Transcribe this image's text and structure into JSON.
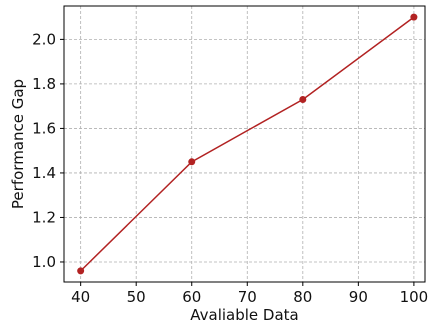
{
  "chart_data": {
    "type": "line",
    "title": "",
    "xlabel": "Avaliable Data",
    "ylabel": "Performance Gap",
    "xlim": [
      37,
      102
    ],
    "ylim": [
      0.91,
      2.15
    ],
    "x_ticks": [
      40,
      50,
      60,
      70,
      80,
      90,
      100
    ],
    "y_ticks": [
      1.0,
      1.2,
      1.4,
      1.6,
      1.8,
      2.0
    ],
    "x_tick_labels": [
      "40",
      "50",
      "60",
      "70",
      "80",
      "90",
      "100"
    ],
    "y_tick_labels": [
      "1.0",
      "1.2",
      "1.4",
      "1.6",
      "1.8",
      "2.0"
    ],
    "grid": true,
    "grid_style": "dashed",
    "series": [
      {
        "color": "#b22222",
        "marker": "circle",
        "x": [
          40,
          60,
          80,
          100
        ],
        "y": [
          0.96,
          1.45,
          1.73,
          2.1
        ]
      }
    ]
  }
}
